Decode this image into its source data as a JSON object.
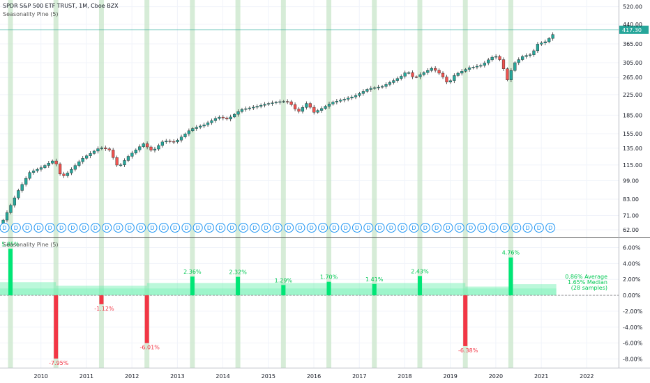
{
  "header": {
    "title": "SPDR S&P 500 ETF TRUST, 1M, Cboe BZX",
    "indicator": "Seasonality Pine (5)",
    "indicator_pane": "Seasonality Pine (5)"
  },
  "colors": {
    "up": "#26a69a",
    "down": "#ef5350",
    "band": "#c8e6c9",
    "pos_bar": "#00e676",
    "neg_bar": "#f23645",
    "area": "#69f0ae",
    "last_price": "#26a69a",
    "event": "#2196f3"
  },
  "chart_data": [
    {
      "type": "candlestick",
      "title": "SPDR S&P 500 ETF TRUST, 1M, Cboe BZX",
      "x_axis": {
        "ticks": [
          "2010",
          "2011",
          "2012",
          "2013",
          "2014",
          "2015",
          "2016",
          "2017",
          "2018",
          "2019",
          "2020",
          "2021",
          "2022"
        ],
        "range": [
          2009.1,
          2022.7
        ]
      },
      "y_axis": {
        "scale": "log",
        "range": [
          58,
          540
        ],
        "ticks": [
          "520.00",
          "440.00",
          "365.00",
          "305.00",
          "265.00",
          "225.00",
          "185.00",
          "155.00",
          "135.00",
          "115.00",
          "99.00",
          "83.00",
          "71.00",
          "62.00"
        ]
      },
      "last_price": "417.30",
      "highlight_months": [
        2009.33,
        2010.33,
        2011.33,
        2012.33,
        2013.33,
        2014.33,
        2015.33,
        2016.33,
        2017.33,
        2018.33,
        2019.33,
        2020.33
      ],
      "event_marker": "D",
      "event_markers": [
        2009.2,
        2009.45,
        2009.7,
        2009.95,
        2010.2,
        2010.45,
        2010.7,
        2010.95,
        2011.2,
        2011.45,
        2011.7,
        2011.95,
        2012.2,
        2012.45,
        2012.7,
        2012.95,
        2013.2,
        2013.45,
        2013.7,
        2013.95,
        2014.2,
        2014.45,
        2014.7,
        2014.95,
        2015.2,
        2015.45,
        2015.7,
        2015.95,
        2016.2,
        2016.45,
        2016.7,
        2016.95,
        2017.2,
        2017.45,
        2017.7,
        2017.95,
        2018.2,
        2018.45,
        2018.7,
        2018.95,
        2019.2,
        2019.45,
        2019.7,
        2019.95,
        2020.2,
        2020.45,
        2020.7,
        2020.95,
        2021.2
      ],
      "path": [
        [
          2009.17,
          68
        ],
        [
          2009.5,
          90
        ],
        [
          2009.75,
          107
        ],
        [
          2010.0,
          112
        ],
        [
          2010.3,
          121
        ],
        [
          2010.45,
          102
        ],
        [
          2010.6,
          107
        ],
        [
          2010.9,
          122
        ],
        [
          2011.3,
          136
        ],
        [
          2011.5,
          133
        ],
        [
          2011.7,
          112
        ],
        [
          2011.9,
          124
        ],
        [
          2012.25,
          141
        ],
        [
          2012.45,
          131
        ],
        [
          2012.7,
          145
        ],
        [
          2012.95,
          143
        ],
        [
          2013.3,
          162
        ],
        [
          2013.6,
          169
        ],
        [
          2013.9,
          182
        ],
        [
          2014.1,
          178
        ],
        [
          2014.4,
          195
        ],
        [
          2014.7,
          200
        ],
        [
          2014.95,
          206
        ],
        [
          2015.3,
          211
        ],
        [
          2015.45,
          210
        ],
        [
          2015.65,
          190
        ],
        [
          2015.85,
          208
        ],
        [
          2016.0,
          190
        ],
        [
          2016.15,
          196
        ],
        [
          2016.4,
          209
        ],
        [
          2016.7,
          216
        ],
        [
          2016.9,
          222
        ],
        [
          2017.2,
          238
        ],
        [
          2017.5,
          243
        ],
        [
          2017.9,
          266
        ],
        [
          2018.05,
          282
        ],
        [
          2018.2,
          263
        ],
        [
          2018.6,
          290
        ],
        [
          2018.8,
          272
        ],
        [
          2018.95,
          249
        ],
        [
          2019.1,
          272
        ],
        [
          2019.4,
          290
        ],
        [
          2019.7,
          298
        ],
        [
          2019.9,
          321
        ],
        [
          2020.05,
          325
        ],
        [
          2020.15,
          296
        ],
        [
          2020.25,
          258
        ],
        [
          2020.4,
          303
        ],
        [
          2020.6,
          325
        ],
        [
          2020.8,
          330
        ],
        [
          2020.9,
          363
        ],
        [
          2021.1,
          373
        ],
        [
          2021.25,
          398
        ],
        [
          2021.33,
          417.3
        ]
      ]
    },
    {
      "type": "bar",
      "title": "Seasonality Pine (5)",
      "ylim": [
        -9.1,
        7.1
      ],
      "y_ticks": [
        "6.00%",
        "4.00%",
        "2.00%",
        "0.00%",
        "-2.00%",
        "-4.00%",
        "-6.00%",
        "-8.00%"
      ],
      "x": [
        2009.33,
        2010.33,
        2011.33,
        2012.33,
        2013.33,
        2014.33,
        2015.33,
        2016.33,
        2017.33,
        2018.33,
        2019.33,
        2020.33
      ],
      "values": [
        5.85,
        -7.95,
        -1.12,
        -6.01,
        2.36,
        2.32,
        1.29,
        1.7,
        1.41,
        2.43,
        -6.38,
        4.76
      ],
      "labels": [
        "5.85%",
        "-7.95%",
        "-1.12%",
        "-6.01%",
        "2.36%",
        "2.32%",
        "1.29%",
        "1.70%",
        "1.41%",
        "2.43%",
        "-6.38%",
        "4.76%"
      ],
      "average": {
        "value": 0.86,
        "label": "0.86% Average"
      },
      "median": {
        "value": 1.65,
        "label": "1.65% Median"
      },
      "samples": "(28 samples)",
      "area_levels": [
        [
          2009.1,
          2010.33,
          1.65
        ],
        [
          2010.33,
          2012.33,
          1.2
        ],
        [
          2012.33,
          2019.33,
          1.55
        ],
        [
          2019.33,
          2020.33,
          1.1
        ],
        [
          2020.33,
          2021.33,
          1.4
        ]
      ]
    }
  ]
}
